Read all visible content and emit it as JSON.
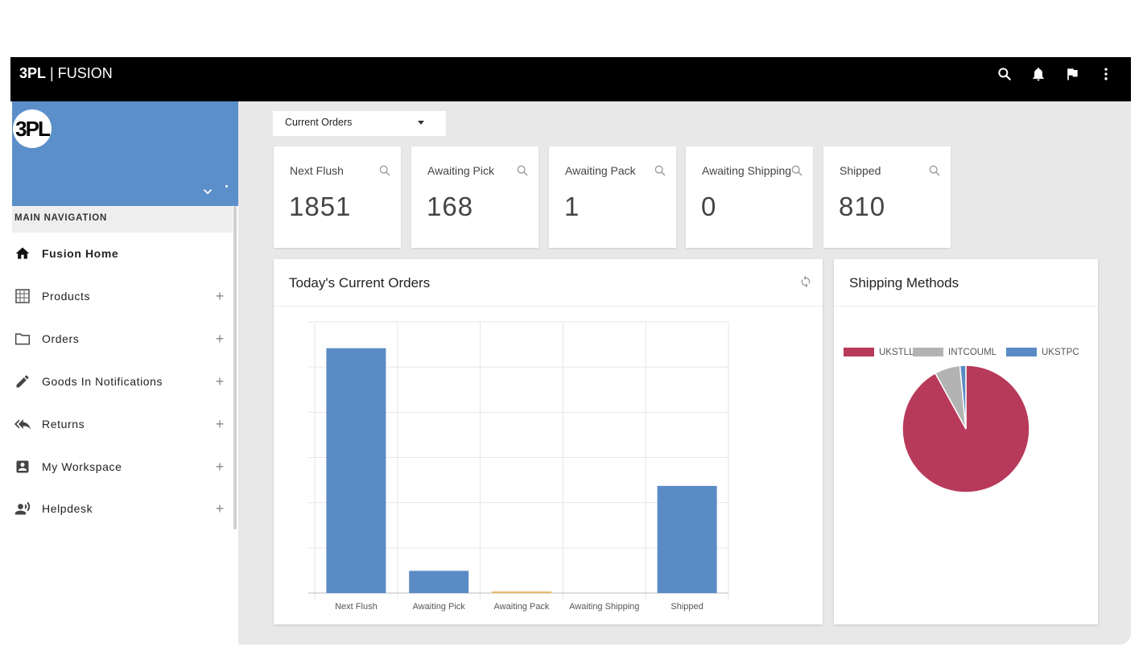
{
  "topbar": {
    "brand_bold": "3PL",
    "brand_rest": " | FUSION",
    "icons": [
      "search-icon",
      "bell-icon",
      "flag-icon",
      "more-vert-icon"
    ]
  },
  "sidebar": {
    "logo_text": "3PL",
    "nav_header": "MAIN NAVIGATION",
    "items": [
      {
        "label": "Fusion Home",
        "icon": "home-icon",
        "active": true
      },
      {
        "label": "Products",
        "icon": "grid-icon",
        "expandable": true
      },
      {
        "label": "Orders",
        "icon": "folder-icon",
        "expandable": true
      },
      {
        "label": "Goods In Notifications",
        "icon": "pencil-icon",
        "expandable": true
      },
      {
        "label": "Returns",
        "icon": "reply-all-icon",
        "expandable": true
      },
      {
        "label": "My Workspace",
        "icon": "account-box-icon",
        "expandable": true
      },
      {
        "label": "Helpdesk",
        "icon": "record-voice-icon",
        "expandable": true
      }
    ],
    "expand_symbol": "+"
  },
  "main": {
    "dropdown_value": "Current Orders",
    "stats": [
      {
        "label": "Next Flush",
        "value": "1851"
      },
      {
        "label": "Awaiting Pick",
        "value": "168"
      },
      {
        "label": "Awaiting Pack",
        "value": "1"
      },
      {
        "label": "Awaiting Shipping",
        "value": "0"
      },
      {
        "label": "Shipped",
        "value": "810"
      }
    ]
  },
  "orders_chart": {
    "title": "Today's Current Orders",
    "chart_data": {
      "type": "bar",
      "categories": [
        "Next Flush",
        "Awaiting Pick",
        "Awaiting Pack",
        "Awaiting Shipping",
        "Shipped"
      ],
      "values": [
        1851,
        168,
        1,
        0,
        810
      ],
      "colors": [
        "#5b8bc5",
        "#5b8bc5",
        "#e8b96a",
        "#5b8bc5",
        "#5b8bc5"
      ],
      "ylim": [
        0,
        2050
      ],
      "grid": true
    }
  },
  "shipping_chart": {
    "title": "Shipping Methods",
    "chart_data": {
      "type": "pie",
      "labels": [
        "UKSTLL",
        "INTCOUML",
        "UKSTPC"
      ],
      "values": [
        92,
        6.5,
        1.5
      ],
      "colors": [
        "#b83a5a",
        "#b3b3b3",
        "#5b8bc5"
      ],
      "legend": "top"
    }
  }
}
